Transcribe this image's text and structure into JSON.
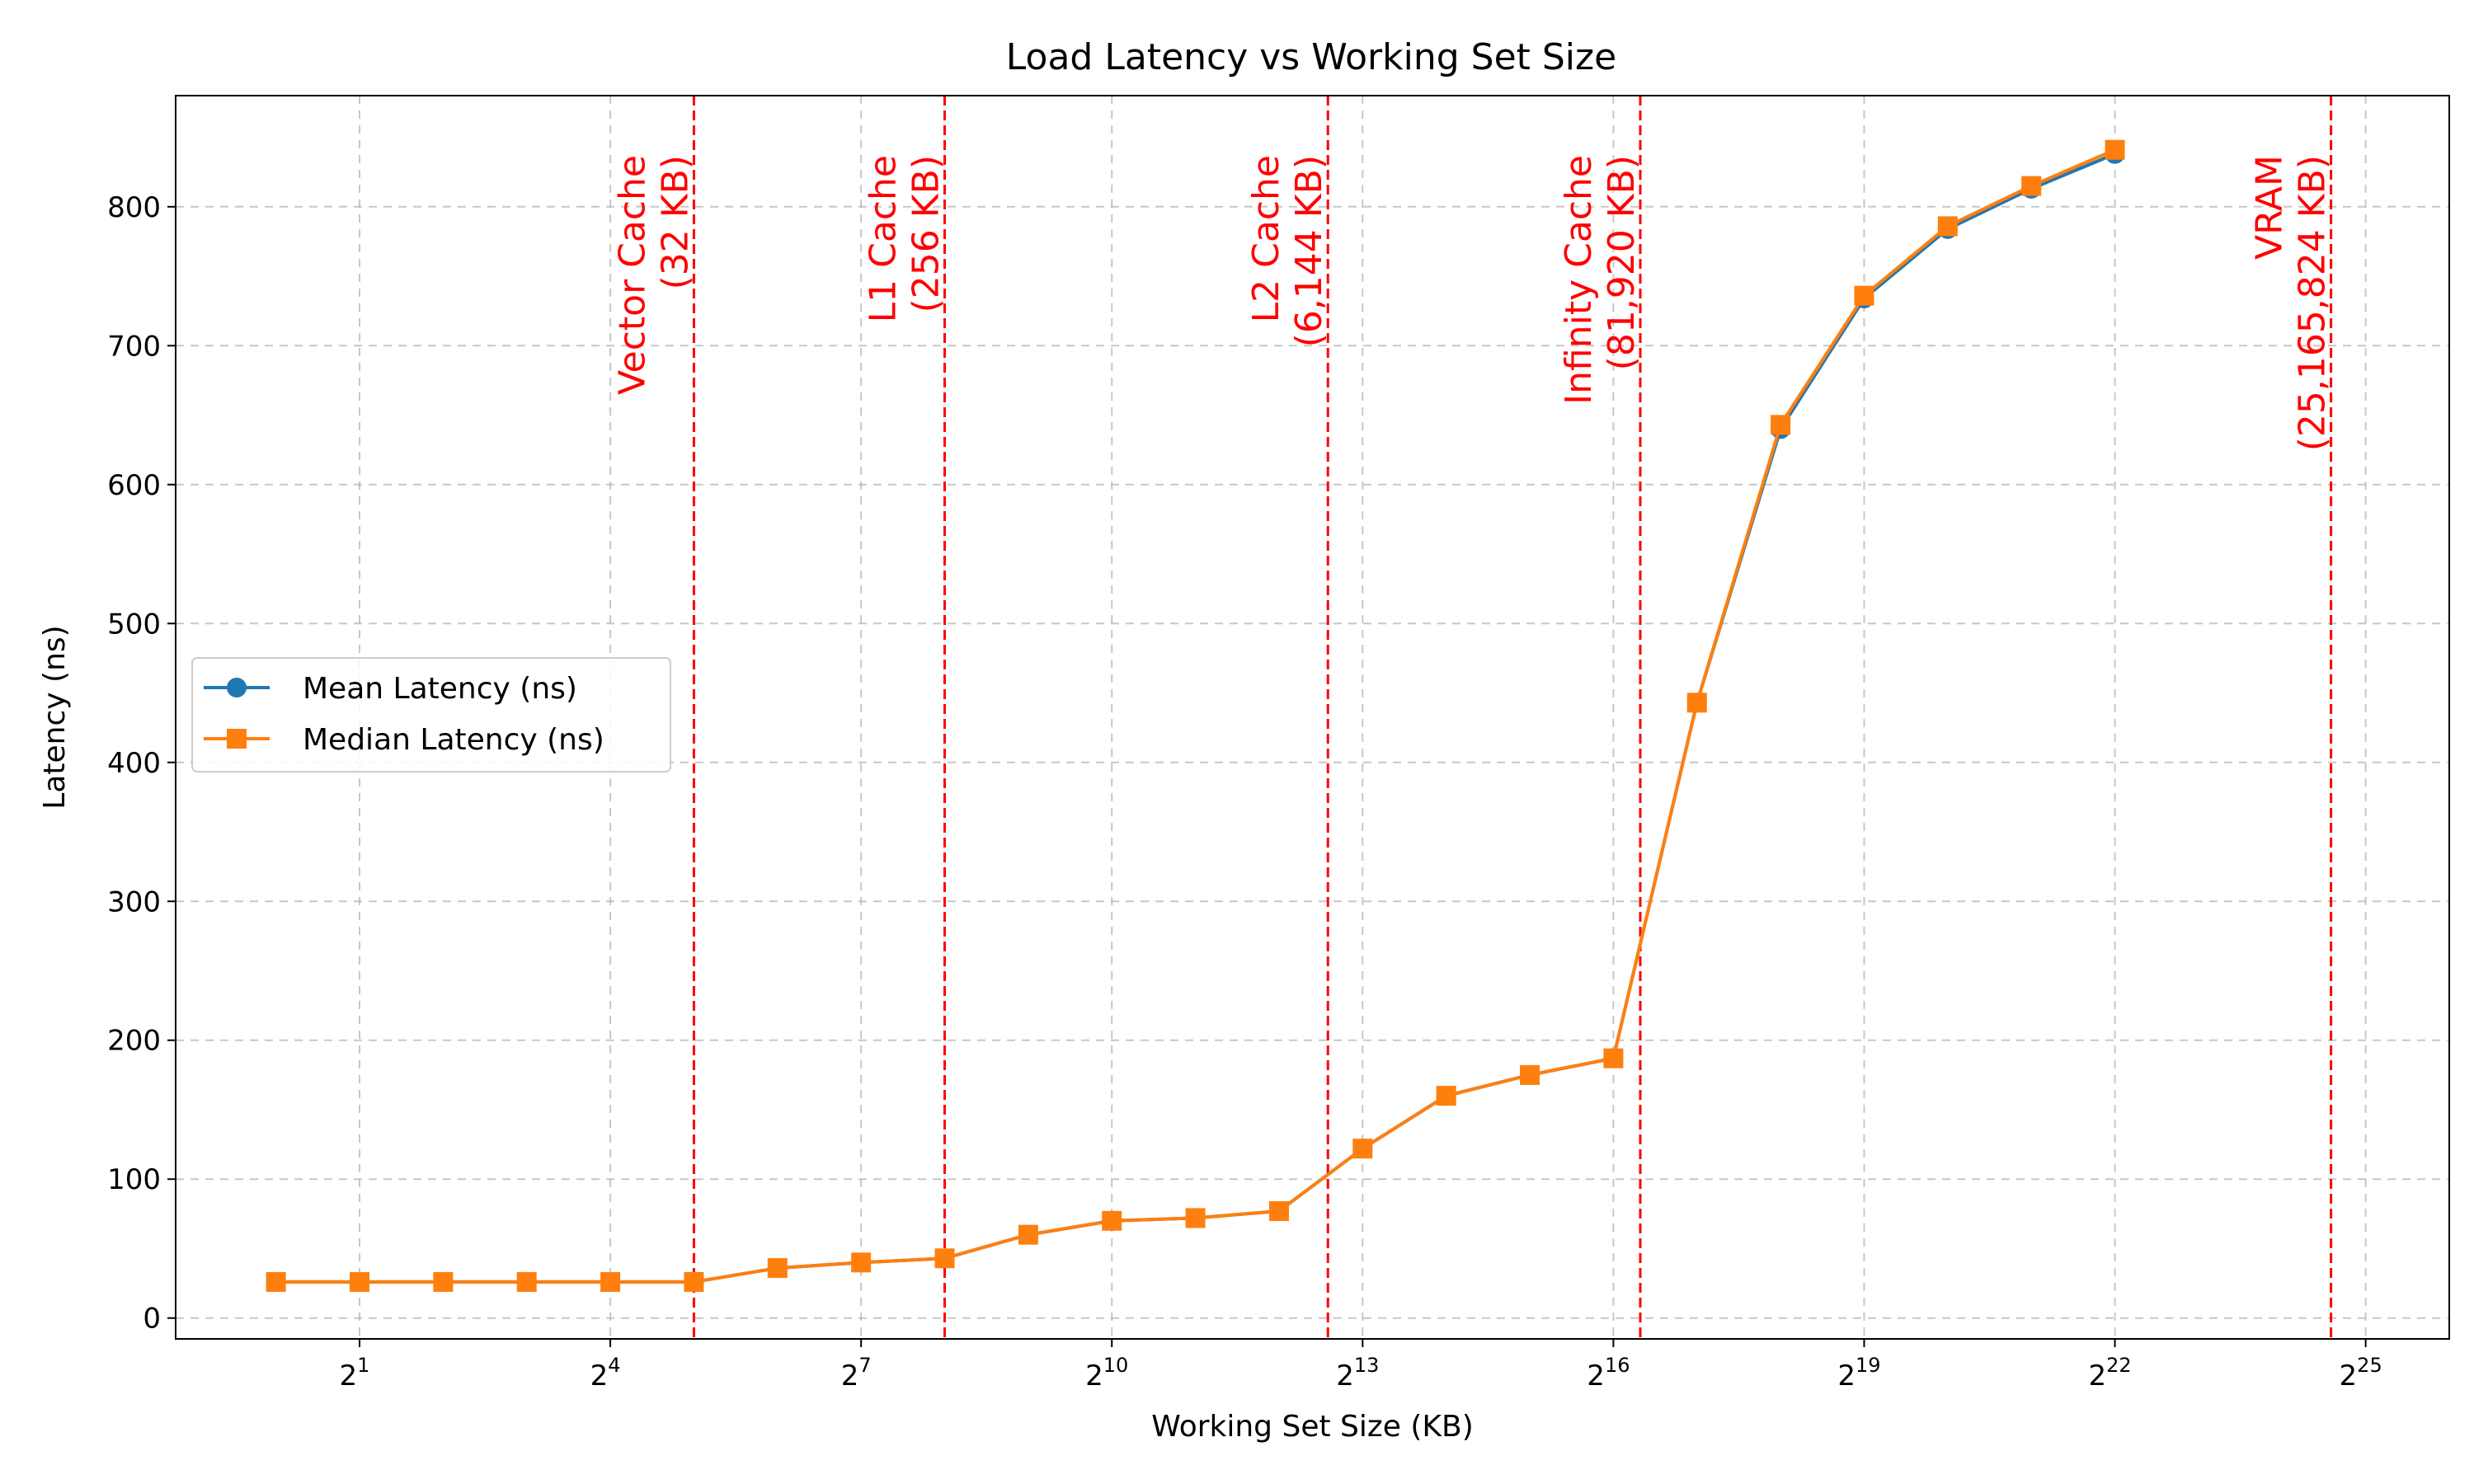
{
  "chart_data": {
    "type": "line",
    "title": "Load Latency vs Working Set Size",
    "xlabel": "Working Set Size (KB)",
    "ylabel": "Latency (ns)",
    "x_scale": "log2",
    "x_tick_exponents": [
      1,
      4,
      7,
      10,
      13,
      16,
      19,
      22,
      25
    ],
    "x_tick_base": "2",
    "xlim_exponent": [
      -1.2,
      26.0
    ],
    "ylim": [
      -15,
      880
    ],
    "y_ticks": [
      0,
      100,
      200,
      300,
      400,
      500,
      600,
      700,
      800
    ],
    "grid": true,
    "legend_position": "center-left",
    "x": [
      1,
      2,
      4,
      8,
      16,
      32,
      64,
      128,
      256,
      512,
      1024,
      2048,
      4096,
      8192,
      16384,
      32768,
      65536,
      131072,
      262144,
      524288,
      1048576,
      2097152,
      4194304
    ],
    "series": [
      {
        "name": "Mean Latency (ns)",
        "color": "#1f77b4",
        "marker": "circle",
        "values": [
          26,
          26,
          26,
          26,
          26,
          26,
          36,
          40,
          43,
          60,
          70,
          72,
          77,
          122,
          160,
          175,
          187,
          443,
          640,
          734,
          784,
          813,
          838
        ]
      },
      {
        "name": "Median Latency (ns)",
        "color": "#ff7f0e",
        "marker": "square",
        "values": [
          26,
          26,
          26,
          26,
          26,
          26,
          36,
          40,
          43,
          60,
          70,
          72,
          77,
          122,
          160,
          175,
          187,
          443,
          643,
          736,
          786,
          815,
          841
        ]
      }
    ],
    "annotations": [
      {
        "x": 32,
        "line1": "Vector Cache",
        "line2": "(32 KB)",
        "color": "#ff0000"
      },
      {
        "x": 256,
        "line1": "L1 Cache",
        "line2": "(256 KB)",
        "color": "#ff0000"
      },
      {
        "x": 6144,
        "line1": "L2 Cache",
        "line2": "(6,144 KB)",
        "color": "#ff0000"
      },
      {
        "x": 81920,
        "line1": "Infinity Cache",
        "line2": "(81,920 KB)",
        "color": "#ff0000"
      },
      {
        "x": 25165824,
        "line1": "VRAM",
        "line2": "(25,165,824 KB)",
        "color": "#ff0000"
      }
    ]
  }
}
